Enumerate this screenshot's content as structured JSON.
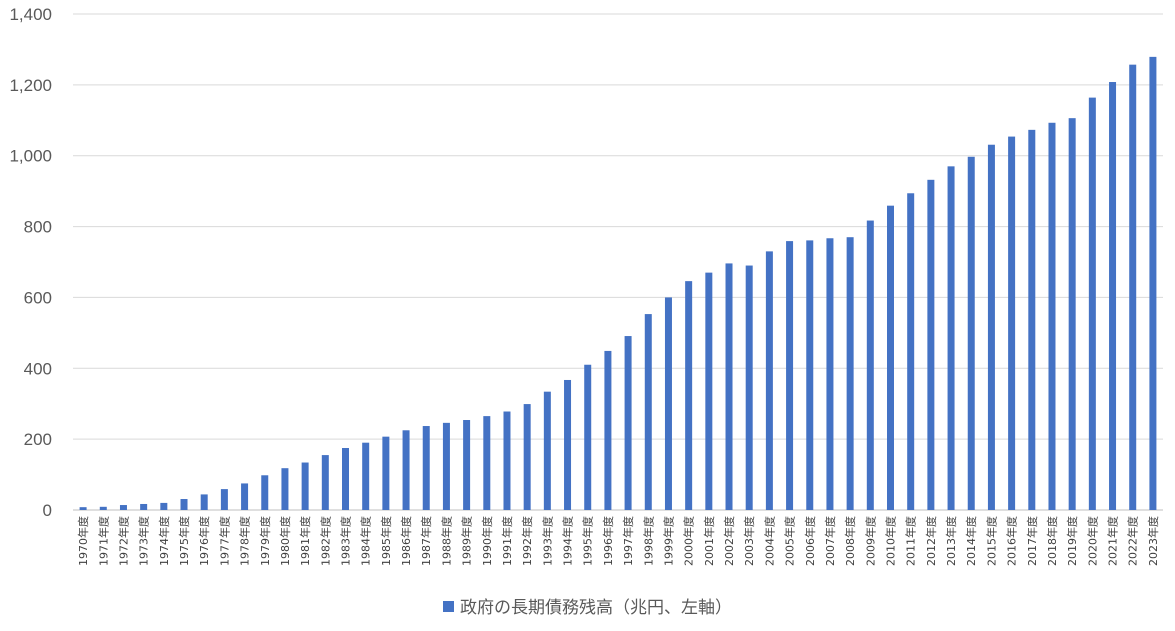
{
  "chart_data": {
    "type": "bar",
    "title": "",
    "xlabel": "",
    "ylabel": "",
    "ylim": [
      0,
      1400
    ],
    "yticks": [
      "0",
      "200",
      "400",
      "600",
      "800",
      "1,000",
      "1,200",
      "1,400"
    ],
    "ytick_values": [
      0,
      200,
      400,
      600,
      800,
      1000,
      1200,
      1400
    ],
    "grid": true,
    "legend_position": "bottom",
    "categories": [
      "1970年度",
      "1971年度",
      "1972年度",
      "1973年度",
      "1974年度",
      "1975年度",
      "1976年度",
      "1977年度",
      "1978年度",
      "1979年度",
      "1980年度",
      "1981年度",
      "1982年度",
      "1983年度",
      "1984年度",
      "1985年度",
      "1986年度",
      "1987年度",
      "1988年度",
      "1989年度",
      "1990年度",
      "1991年度",
      "1992年度",
      "1993年度",
      "1994年度",
      "1995年度",
      "1996年度",
      "1997年度",
      "1998年度",
      "1999年度",
      "2000年度",
      "2001年度",
      "2002年度",
      "2003年度",
      "2004年度",
      "2005年度",
      "2006年度",
      "2007年度",
      "2008年度",
      "2009年度",
      "2010年度",
      "2011年度",
      "2012年度",
      "2013年度",
      "2014年度",
      "2015年度",
      "2016年度",
      "2017年度",
      "2018年度",
      "2019年度",
      "2020年度",
      "2021年度",
      "2022年度",
      "2023年度"
    ],
    "series": [
      {
        "name": "政府の長期債務残高（兆円、左軸）",
        "color": "#4472c4",
        "values": [
          8,
          9,
          14,
          17,
          20,
          31,
          44,
          59,
          75,
          98,
          118,
          134,
          155,
          175,
          190,
          207,
          225,
          237,
          246,
          254,
          265,
          278,
          299,
          334,
          367,
          410,
          449,
          491,
          553,
          600,
          646,
          670,
          696,
          690,
          730,
          759,
          761,
          767,
          770,
          817,
          859,
          894,
          932,
          970,
          997,
          1031,
          1054,
          1073,
          1093,
          1106,
          1164,
          1208,
          1257,
          1279
        ]
      }
    ]
  }
}
